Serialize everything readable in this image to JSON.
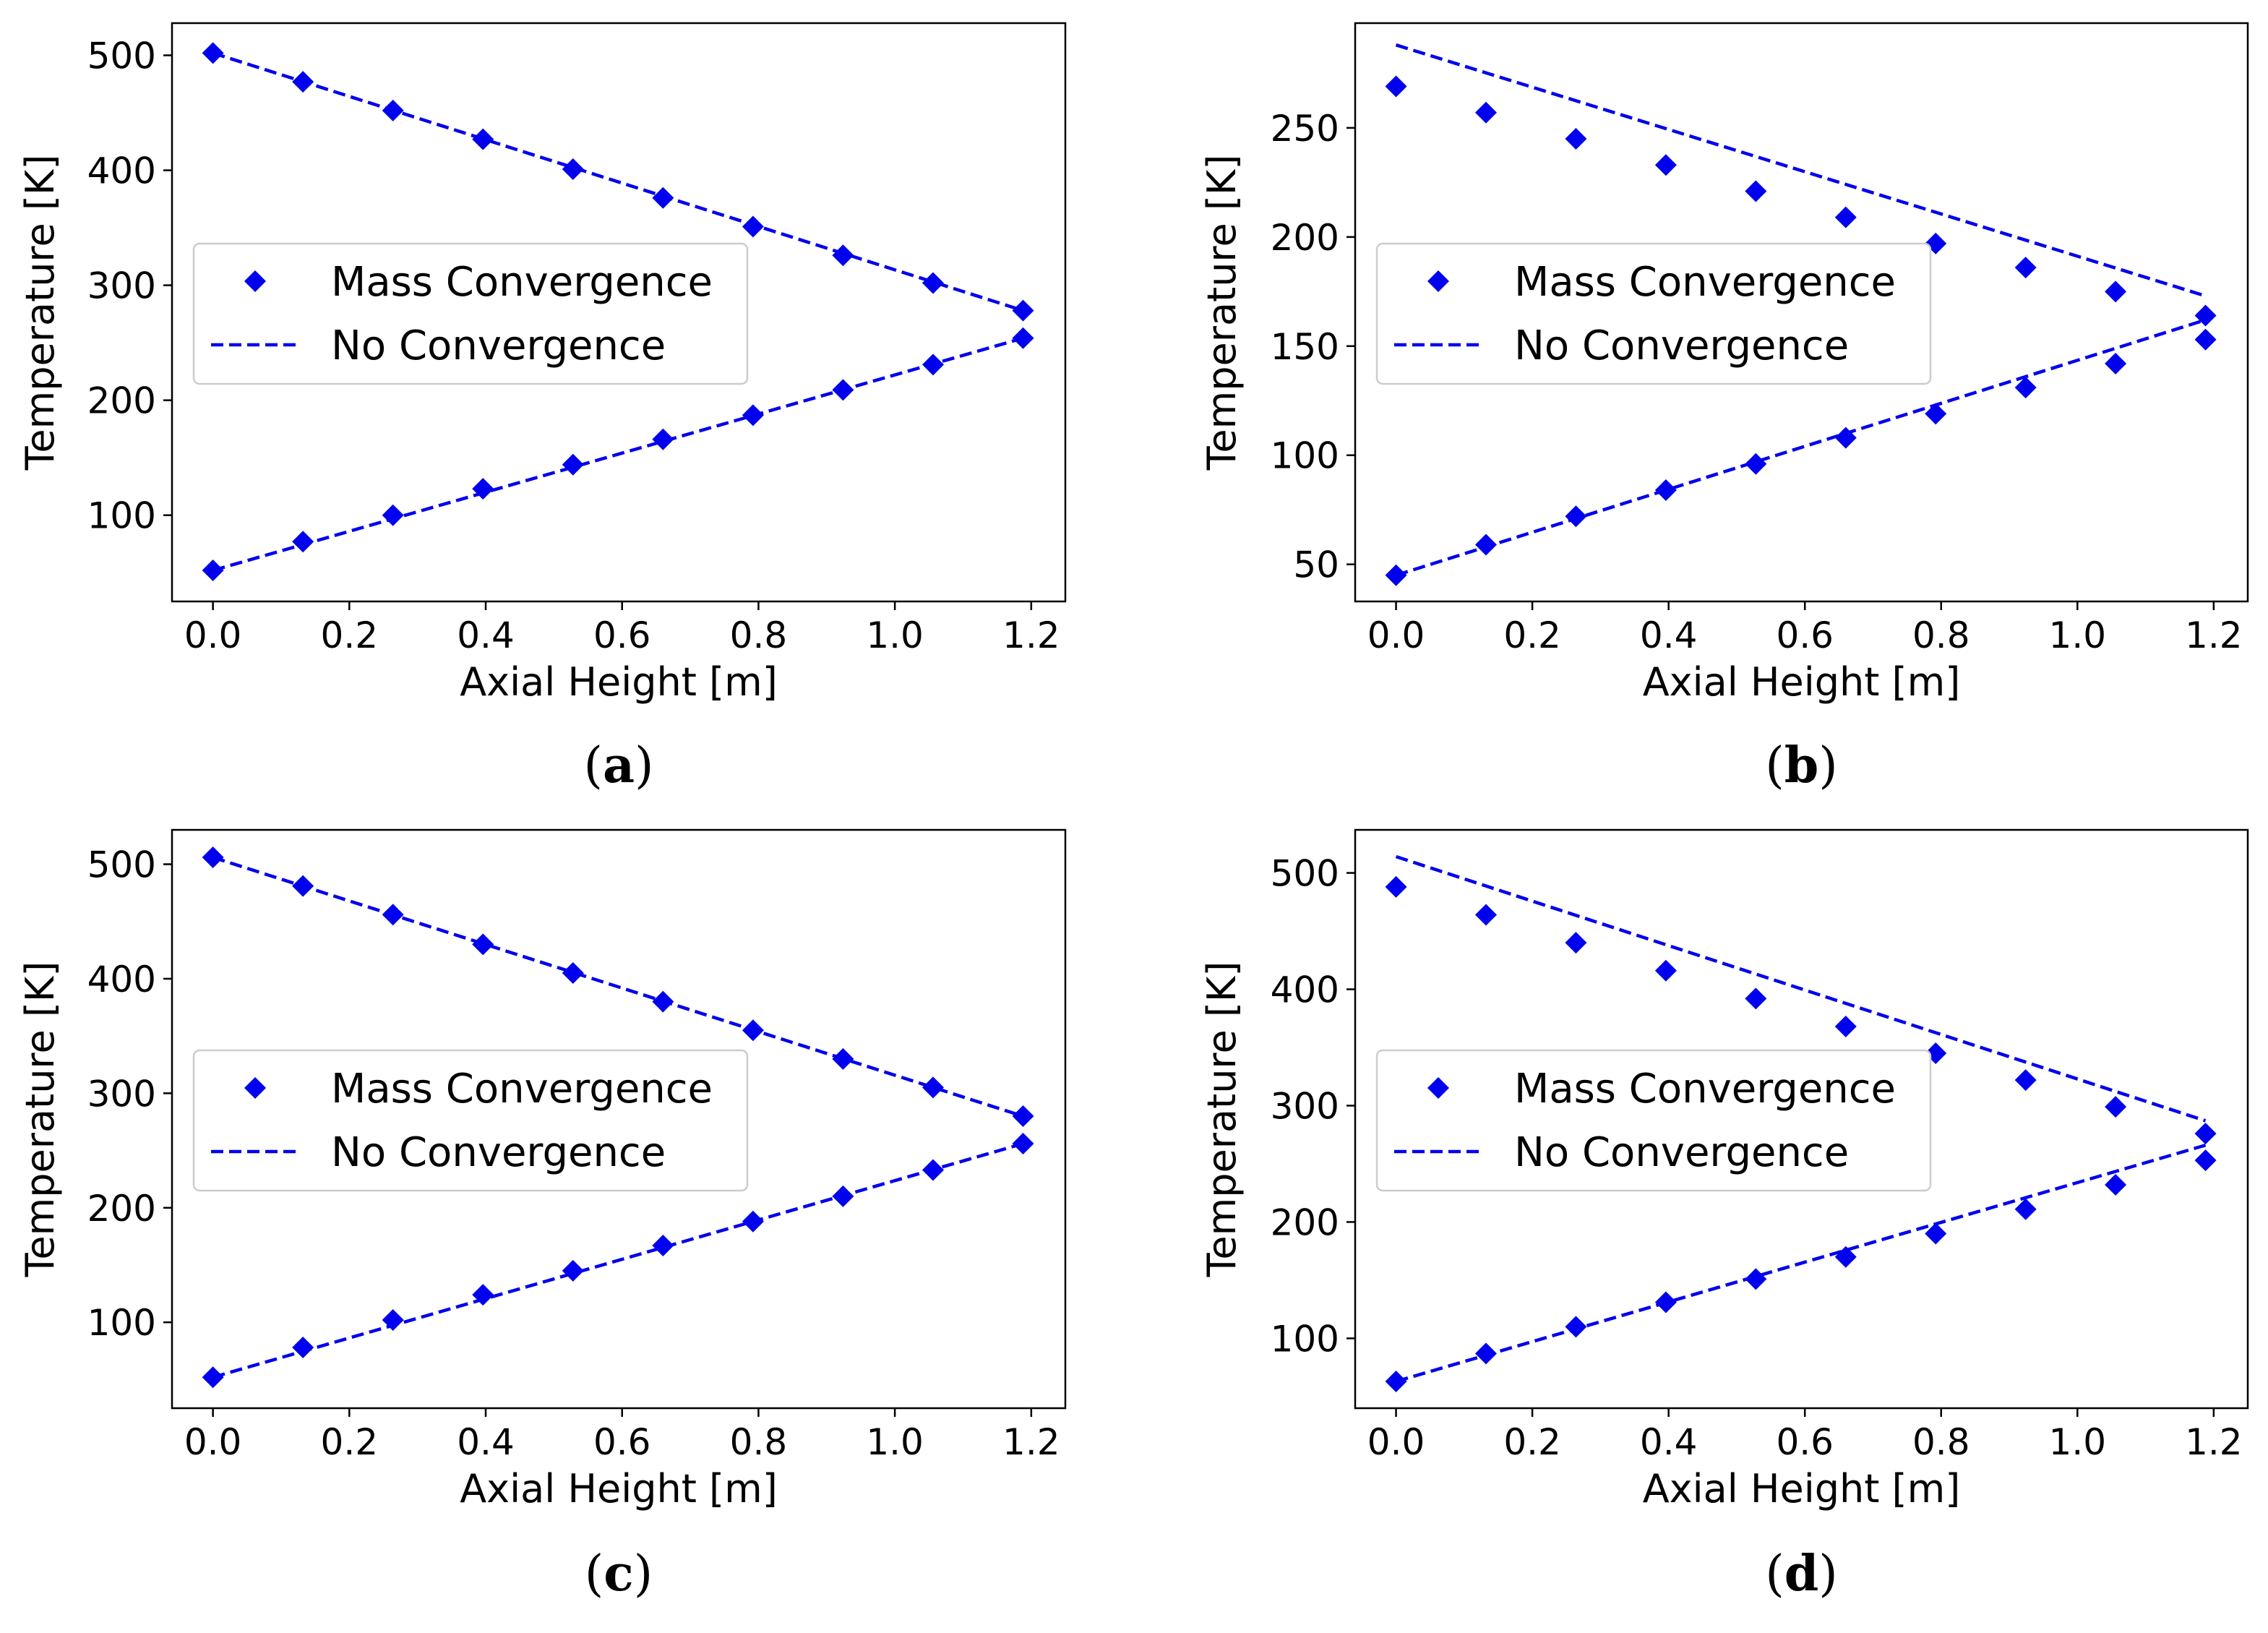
{
  "colors": {
    "series": "#0000ee",
    "axes": "#000000",
    "legend_border": "#cccccc"
  },
  "chart_data": [
    {
      "panel": "a",
      "caption_open": "(",
      "caption_letter": "a",
      "caption_close": ")",
      "type": "line",
      "xlabel": "Axial Height [m]",
      "ylabel": "Temperature [K]",
      "xlim": [
        -0.06,
        1.25
      ],
      "ylim": [
        25,
        528
      ],
      "xticks": [
        0.0,
        0.2,
        0.4,
        0.6,
        0.8,
        1.0,
        1.2
      ],
      "xtick_labels": [
        "0.0",
        "0.2",
        "0.4",
        "0.6",
        "0.8",
        "1.0",
        "1.2"
      ],
      "yticks": [
        100,
        200,
        300,
        400,
        500
      ],
      "ytick_labels": [
        "100",
        "200",
        "300",
        "400",
        "500"
      ],
      "legend_position": "center-left",
      "series": [
        {
          "name": "Mass Convergence",
          "style": "diamond-markers",
          "upper": {
            "x": [
              0.0,
              0.132,
              0.264,
              0.396,
              0.528,
              0.66,
              0.792,
              0.924,
              1.056,
              1.188
            ],
            "y": [
              502,
              477,
              452,
              427,
              401,
              376,
              351,
              326,
              302,
              278
            ]
          },
          "lower": {
            "x": [
              0.0,
              0.132,
              0.264,
              0.396,
              0.528,
              0.66,
              0.792,
              0.924,
              1.056,
              1.188
            ],
            "y": [
              52,
              77,
              100,
              123,
              144,
              166,
              187,
              209,
              231,
              254
            ]
          }
        },
        {
          "name": "No Convergence",
          "style": "dashed-line",
          "upper": {
            "x": [
              0.0,
              1.188
            ],
            "y": [
              502,
              278
            ]
          },
          "lower": {
            "x": [
              0.0,
              1.188
            ],
            "y": [
              52,
              254
            ]
          }
        }
      ]
    },
    {
      "panel": "b",
      "caption_open": "(",
      "caption_letter": "b",
      "caption_close": ")",
      "type": "line",
      "xlabel": "Axial Height [m]",
      "ylabel": "Temperature [K]",
      "xlim": [
        -0.06,
        1.25
      ],
      "ylim": [
        33,
        298
      ],
      "xticks": [
        0.0,
        0.2,
        0.4,
        0.6,
        0.8,
        1.0,
        1.2
      ],
      "xtick_labels": [
        "0.0",
        "0.2",
        "0.4",
        "0.6",
        "0.8",
        "1.0",
        "1.2"
      ],
      "yticks": [
        50,
        100,
        150,
        200,
        250
      ],
      "ytick_labels": [
        "50",
        "100",
        "150",
        "200",
        "250"
      ],
      "legend_position": "center-left",
      "series": [
        {
          "name": "Mass Convergence",
          "style": "diamond-markers",
          "upper": {
            "x": [
              0.0,
              0.132,
              0.264,
              0.396,
              0.528,
              0.66,
              0.792,
              0.924,
              1.056,
              1.188
            ],
            "y": [
              269,
              257,
              245,
              233,
              221,
              209,
              197,
              186,
              175,
              164
            ]
          },
          "lower": {
            "x": [
              0.0,
              0.132,
              0.264,
              0.396,
              0.528,
              0.66,
              0.792,
              0.924,
              1.056,
              1.188
            ],
            "y": [
              45,
              59,
              72,
              84,
              96,
              108,
              119,
              131,
              142,
              153
            ]
          }
        },
        {
          "name": "No Convergence",
          "style": "dashed-line",
          "upper": {
            "x": [
              0.0,
              1.188
            ],
            "y": [
              288,
              173
            ]
          },
          "lower": {
            "x": [
              0.0,
              1.188
            ],
            "y": [
              45,
              162
            ]
          }
        }
      ]
    },
    {
      "panel": "c",
      "caption_open": "(",
      "caption_letter": "c",
      "caption_close": ")",
      "type": "line",
      "xlabel": "Axial Height [m]",
      "ylabel": "Temperature [K]",
      "xlim": [
        -0.06,
        1.25
      ],
      "ylim": [
        25,
        530
      ],
      "xticks": [
        0.0,
        0.2,
        0.4,
        0.6,
        0.8,
        1.0,
        1.2
      ],
      "xtick_labels": [
        "0.0",
        "0.2",
        "0.4",
        "0.6",
        "0.8",
        "1.0",
        "1.2"
      ],
      "yticks": [
        100,
        200,
        300,
        400,
        500
      ],
      "ytick_labels": [
        "100",
        "200",
        "300",
        "400",
        "500"
      ],
      "legend_position": "center-left",
      "series": [
        {
          "name": "Mass Convergence",
          "style": "diamond-markers",
          "upper": {
            "x": [
              0.0,
              0.132,
              0.264,
              0.396,
              0.528,
              0.66,
              0.792,
              0.924,
              1.056,
              1.188
            ],
            "y": [
              506,
              481,
              456,
              430,
              405,
              380,
              355,
              330,
              305,
              280
            ]
          },
          "lower": {
            "x": [
              0.0,
              0.132,
              0.264,
              0.396,
              0.528,
              0.66,
              0.792,
              0.924,
              1.056,
              1.188
            ],
            "y": [
              52,
              78,
              102,
              124,
              145,
              167,
              188,
              210,
              233,
              256
            ]
          }
        },
        {
          "name": "No Convergence",
          "style": "dashed-line",
          "upper": {
            "x": [
              0.0,
              1.188
            ],
            "y": [
              506,
              280
            ]
          },
          "lower": {
            "x": [
              0.0,
              1.188
            ],
            "y": [
              52,
              256
            ]
          }
        }
      ]
    },
    {
      "panel": "d",
      "caption_open": "(",
      "caption_letter": "d",
      "caption_close": ")",
      "type": "line",
      "xlabel": "Axial Height [m]",
      "ylabel": "Temperature [K]",
      "xlim": [
        -0.06,
        1.25
      ],
      "ylim": [
        40,
        537
      ],
      "xticks": [
        0.0,
        0.2,
        0.4,
        0.6,
        0.8,
        1.0,
        1.2
      ],
      "xtick_labels": [
        "0.0",
        "0.2",
        "0.4",
        "0.6",
        "0.8",
        "1.0",
        "1.2"
      ],
      "yticks": [
        100,
        200,
        300,
        400,
        500
      ],
      "ytick_labels": [
        "100",
        "200",
        "300",
        "400",
        "500"
      ],
      "legend_position": "center-left",
      "series": [
        {
          "name": "Mass Convergence",
          "style": "diamond-markers",
          "upper": {
            "x": [
              0.0,
              0.132,
              0.264,
              0.396,
              0.528,
              0.66,
              0.792,
              0.924,
              1.056,
              1.188
            ],
            "y": [
              488,
              464,
              440,
              416,
              392,
              368,
              345,
              322,
              299,
              276
            ]
          },
          "lower": {
            "x": [
              0.0,
              0.132,
              0.264,
              0.396,
              0.528,
              0.66,
              0.792,
              0.924,
              1.056,
              1.188
            ],
            "y": [
              63,
              87,
              110,
              131,
              151,
              170,
              190,
              211,
              232,
              253
            ]
          }
        },
        {
          "name": "No Convergence",
          "style": "dashed-line",
          "upper": {
            "x": [
              0.0,
              1.188
            ],
            "y": [
              514,
              287
            ]
          },
          "lower": {
            "x": [
              0.0,
              1.188
            ],
            "y": [
              63,
              266
            ]
          }
        }
      ]
    }
  ]
}
